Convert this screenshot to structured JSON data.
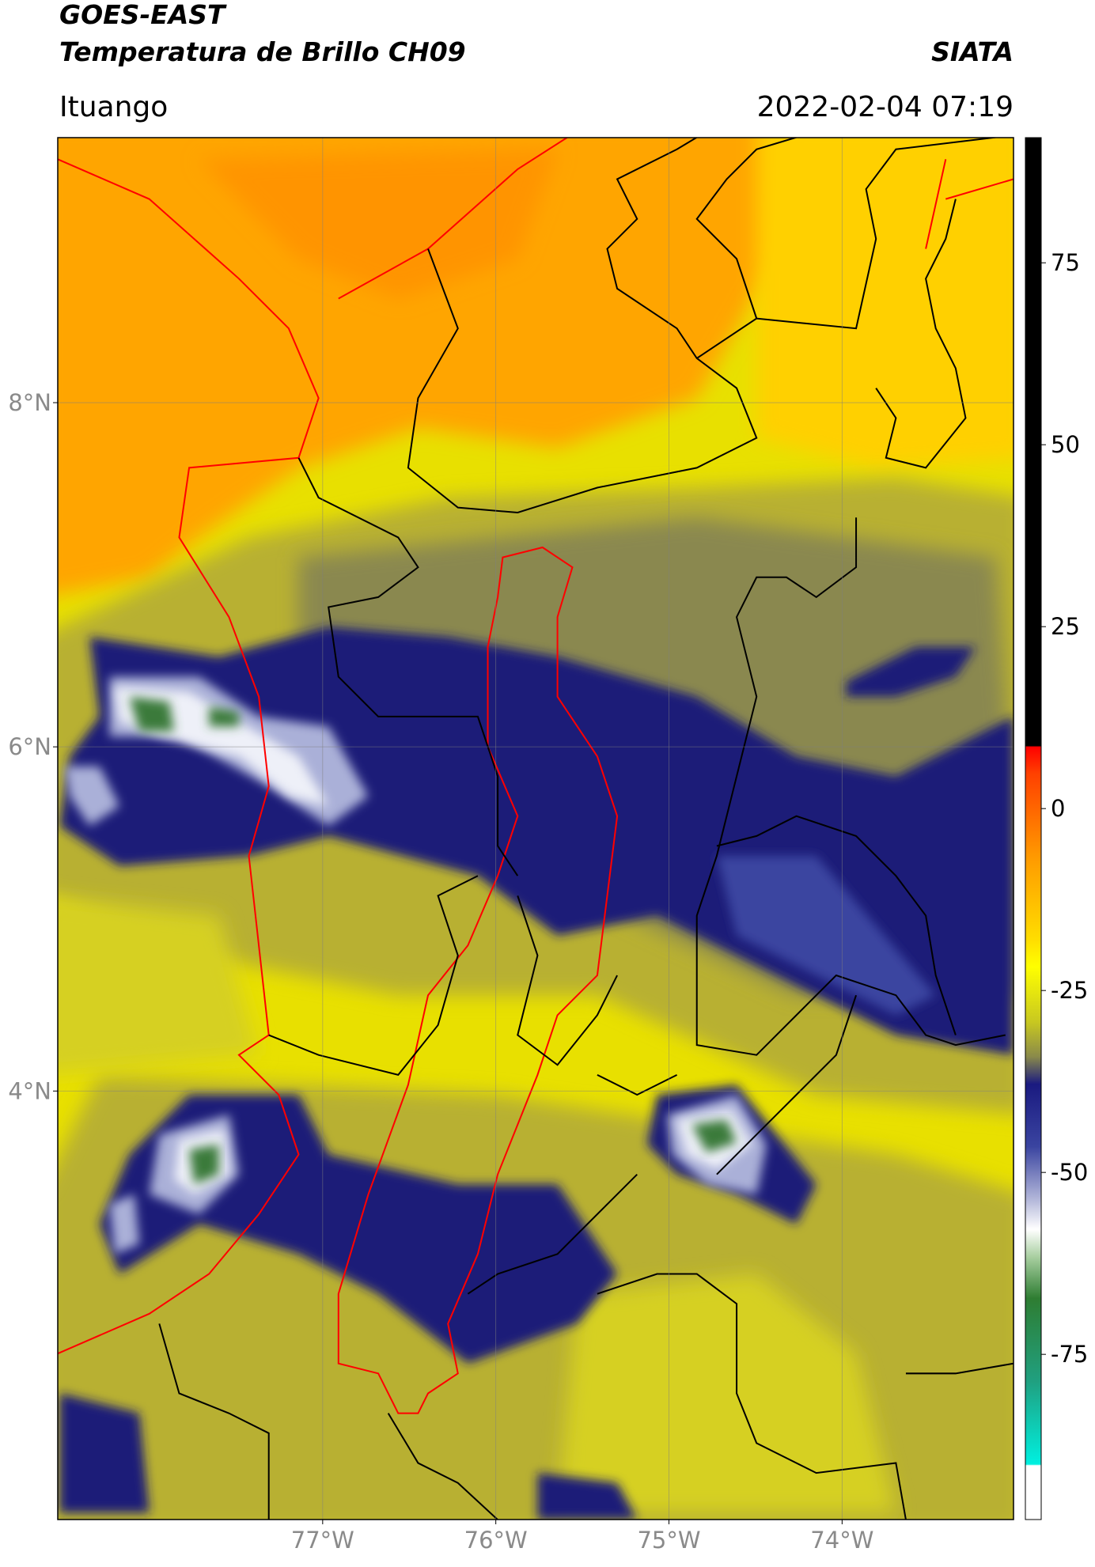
{
  "header": {
    "title": "GOES-EAST",
    "subtitle": "Temperatura de Brillo CH09",
    "brand": "SIATA",
    "region": "Ituango",
    "timestamp": "2022-02-04 07:19"
  },
  "map": {
    "xlim": [
      -78.53,
      -73.01
    ],
    "ylim": [
      1.51,
      9.54
    ],
    "xticks": [
      {
        "value": -77,
        "label": "77°W"
      },
      {
        "value": -76,
        "label": "76°W"
      },
      {
        "value": -75,
        "label": "75°W"
      },
      {
        "value": -74,
        "label": "74°W"
      }
    ],
    "yticks": [
      {
        "value": 8,
        "label": "8°N"
      },
      {
        "value": 6,
        "label": "6°N"
      },
      {
        "value": 4,
        "label": "4°N"
      }
    ],
    "grid": true
  },
  "colorbar": {
    "lim": [
      -97.7,
      92.2
    ],
    "ticks": [
      75,
      50,
      25,
      0,
      -25,
      -50,
      -75
    ]
  }
}
